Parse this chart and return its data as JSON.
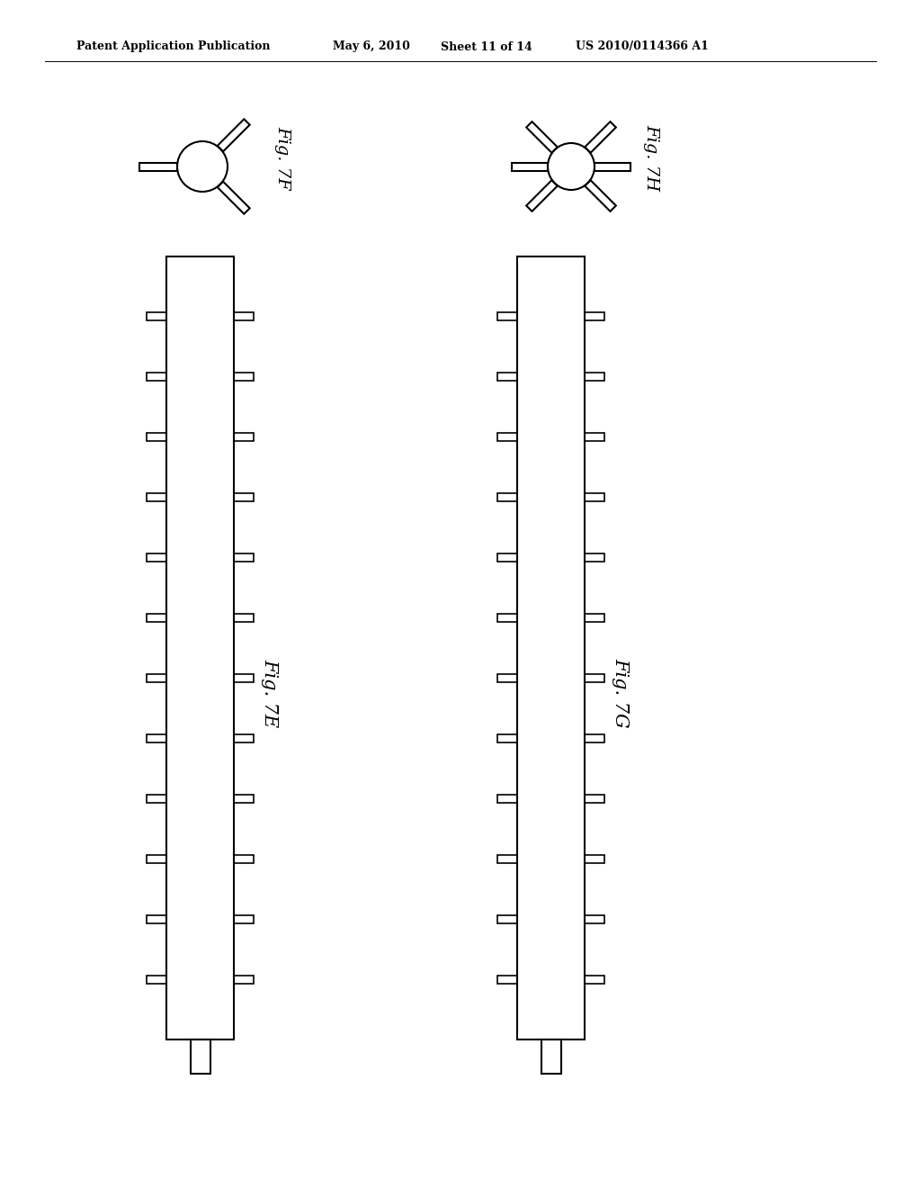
{
  "header_left": "Patent Application Publication",
  "header_mid1": "May 6, 2010",
  "header_mid2": "Sheet 11 of 14",
  "header_right": "US 2010/0114366 A1",
  "fig_7F_label": "Fig. 7F",
  "fig_7H_label": "Fig. 7H",
  "fig_7E_label": "Fig. 7E",
  "fig_7G_label": "Fig. 7G",
  "background": "#ffffff",
  "line_color": "#000000"
}
